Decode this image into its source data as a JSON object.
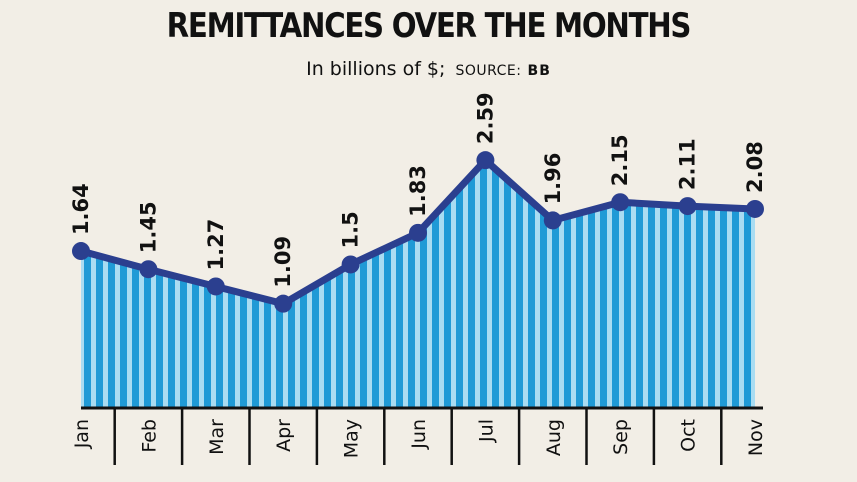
{
  "chart_data": {
    "type": "area",
    "title": "REMITTANCES OVER THE MONTHS",
    "subtitle": "In billions of $;",
    "source_label": "SOURCE:",
    "source": "BB",
    "categories": [
      "Jan",
      "Feb",
      "Mar",
      "Apr",
      "May",
      "Jun",
      "Jul",
      "Aug",
      "Sep",
      "Oct",
      "Nov"
    ],
    "values": [
      1.64,
      1.45,
      1.27,
      1.09,
      1.5,
      1.83,
      2.59,
      1.96,
      2.15,
      2.11,
      2.08
    ],
    "value_labels": [
      "1.64",
      "1.45",
      "1.27",
      "1.09",
      "1.5",
      "1.83",
      "2.59",
      "1.96",
      "2.15",
      "2.11",
      "2.08"
    ],
    "xlabel": "",
    "ylabel": "",
    "ylim": [
      0,
      2.7
    ],
    "grid": false
  },
  "colors": {
    "background": "#f2eee6",
    "line": "#2b3f8f",
    "fill_dark": "#1f9ad6",
    "fill_light": "#a9dcf2",
    "axis": "#111111"
  }
}
